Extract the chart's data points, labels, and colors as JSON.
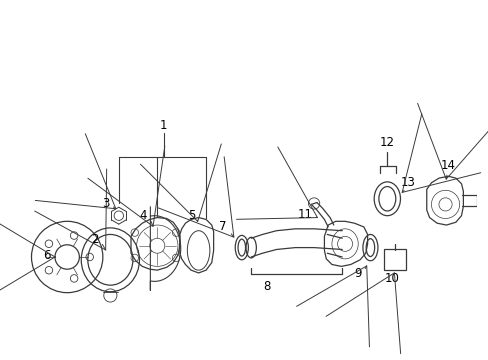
{
  "bg_color": "#ffffff",
  "line_color": "#3a3a3a",
  "label_color": "#000000",
  "figsize": [
    4.89,
    3.6
  ],
  "dpi": 100,
  "xlim": [
    0,
    489
  ],
  "ylim": [
    0,
    360
  ]
}
